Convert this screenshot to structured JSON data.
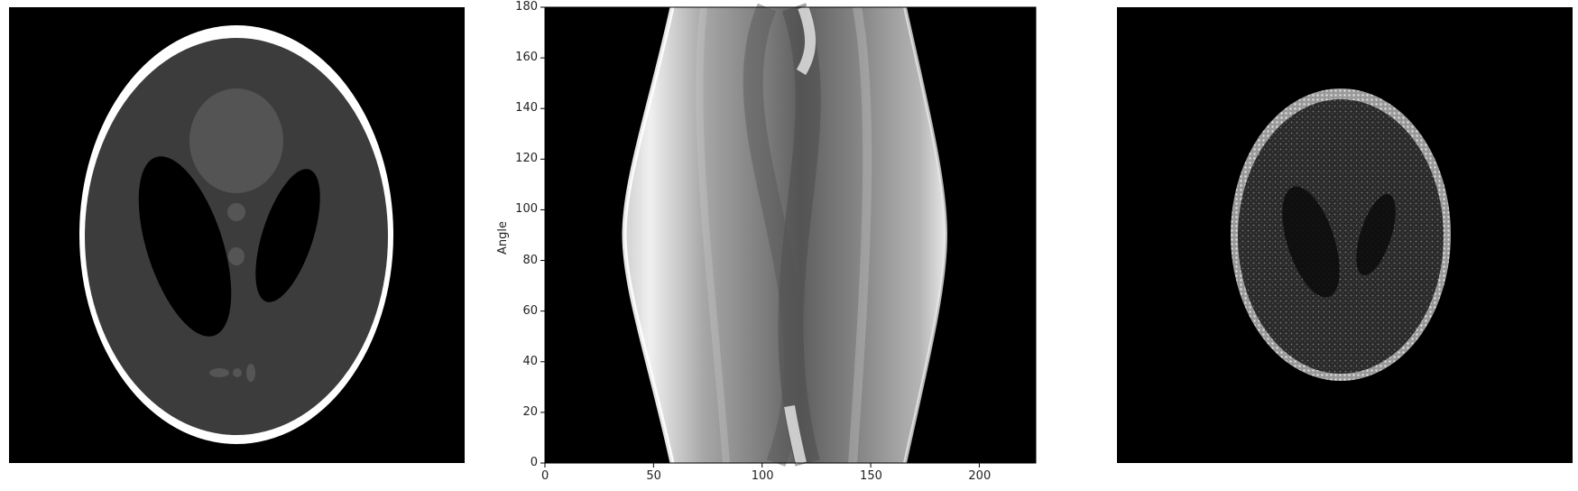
{
  "figure": {
    "panels": [
      {
        "name": "phantom"
      },
      {
        "name": "sinogram",
        "ylabel": "Angle",
        "y_ticks": [
          "0",
          "20",
          "40",
          "60",
          "80",
          "100",
          "120",
          "140",
          "160",
          "180"
        ],
        "x_ticks": [
          "0",
          "50",
          "100",
          "150",
          "200"
        ],
        "y_range": [
          0,
          180
        ],
        "x_range": [
          0,
          226
        ]
      },
      {
        "name": "reconstruction"
      }
    ],
    "colormap": "gray"
  }
}
